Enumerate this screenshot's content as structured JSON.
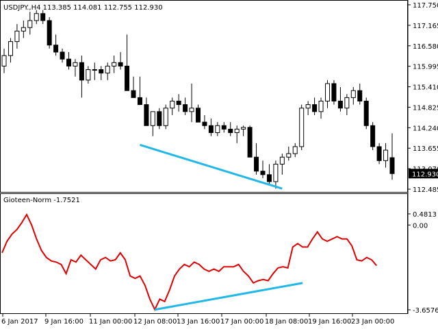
{
  "window": {
    "symbol_header": "USDJPY.,H4  113.385 114.081 112.755 112.930",
    "indicator_header": "Gioteen-Norm -1.7521"
  },
  "colors": {
    "background": "#ffffff",
    "frame": "#000000",
    "candle": "#000000",
    "trendline": "#1fb8e8",
    "indicator": "#e00000",
    "price_tag_bg": "#000000",
    "price_tag_text": "#ffffff"
  },
  "price_axis": {
    "labels": [
      "117.750",
      "117.165",
      "116.580",
      "115.995",
      "115.410",
      "114.825",
      "114.240",
      "113.655",
      "113.070",
      "112.485"
    ],
    "current_price": "112.930"
  },
  "indicator_axis": {
    "labels": [
      "0.4813",
      "0.00",
      "-3.6576"
    ]
  },
  "time_axis": {
    "labels": [
      "6 Jan 2017",
      "9 Jan 16:00",
      "11 Jan 00:00",
      "12 Jan 08:00",
      "13 Jan 16:00",
      "17 Jan 00:00",
      "18 Jan 08:00",
      "19 Jan 16:00",
      "23 Jan 00:00"
    ]
  },
  "chart_data": [
    {
      "type": "candlestick",
      "title": "USDJPY.,H4",
      "ohlc_header": {
        "open": 113.385,
        "high": 114.081,
        "low": 112.755,
        "close": 112.93
      },
      "ylim": [
        112.485,
        117.75
      ],
      "candles": [
        [
          116.0,
          116.5,
          115.8,
          116.3
        ],
        [
          116.3,
          116.8,
          116.1,
          116.7
        ],
        [
          116.7,
          117.2,
          116.5,
          117.0
        ],
        [
          117.0,
          117.3,
          116.8,
          117.1
        ],
        [
          117.1,
          117.55,
          116.9,
          117.3
        ],
        [
          117.3,
          117.6,
          117.2,
          117.5
        ],
        [
          117.5,
          117.6,
          117.2,
          117.3
        ],
        [
          117.3,
          117.4,
          116.5,
          116.6
        ],
        [
          116.6,
          116.9,
          116.3,
          116.4
        ],
        [
          116.4,
          116.5,
          116.1,
          116.2
        ],
        [
          116.2,
          116.4,
          115.9,
          116.0
        ],
        [
          116.0,
          116.2,
          115.7,
          116.1
        ],
        [
          116.1,
          116.3,
          115.1,
          115.6
        ],
        [
          115.6,
          116.0,
          115.5,
          115.9
        ],
        [
          115.9,
          116.1,
          115.6,
          115.9
        ],
        [
          115.9,
          116.0,
          115.6,
          115.8
        ],
        [
          115.8,
          116.1,
          115.6,
          116.0
        ],
        [
          116.0,
          116.3,
          115.8,
          116.1
        ],
        [
          116.1,
          116.4,
          115.9,
          116.0
        ],
        [
          116.0,
          116.9,
          115.3,
          115.3
        ],
        [
          115.3,
          115.7,
          115.1,
          115.1
        ],
        [
          115.1,
          115.7,
          114.9,
          114.9
        ],
        [
          114.9,
          115.1,
          114.3,
          114.3
        ],
        [
          114.3,
          114.7,
          114.0,
          114.7
        ],
        [
          114.7,
          114.8,
          114.2,
          114.3
        ],
        [
          114.3,
          114.9,
          114.2,
          114.8
        ],
        [
          114.8,
          115.1,
          114.6,
          115.0
        ],
        [
          115.0,
          115.2,
          114.7,
          114.9
        ],
        [
          114.9,
          115.1,
          114.6,
          114.7
        ],
        [
          114.7,
          115.5,
          114.4,
          114.8
        ],
        [
          114.8,
          114.9,
          114.4,
          114.4
        ],
        [
          114.4,
          114.6,
          114.2,
          114.3
        ],
        [
          114.3,
          114.5,
          114.0,
          114.1
        ],
        [
          114.1,
          114.4,
          114.0,
          114.3
        ],
        [
          114.3,
          114.4,
          114.1,
          114.2
        ],
        [
          114.2,
          114.4,
          114.0,
          114.1
        ],
        [
          114.1,
          114.3,
          113.8,
          114.2
        ],
        [
          114.2,
          114.3,
          114.0,
          114.25
        ],
        [
          114.25,
          114.3,
          113.4,
          113.4
        ],
        [
          113.4,
          113.8,
          112.9,
          113.0
        ],
        [
          113.0,
          113.3,
          112.8,
          112.9
        ],
        [
          112.9,
          113.2,
          112.6,
          112.7
        ],
        [
          112.7,
          113.3,
          112.5,
          113.2
        ],
        [
          113.2,
          113.5,
          112.9,
          113.4
        ],
        [
          113.4,
          113.7,
          113.3,
          113.5
        ],
        [
          113.5,
          113.8,
          113.4,
          113.7
        ],
        [
          113.7,
          114.9,
          113.6,
          114.8
        ],
        [
          114.8,
          115.0,
          114.6,
          114.9
        ],
        [
          114.9,
          115.1,
          114.6,
          114.7
        ],
        [
          114.7,
          115.1,
          114.5,
          115.0
        ],
        [
          115.0,
          115.6,
          114.8,
          115.5
        ],
        [
          115.5,
          115.6,
          114.9,
          115.0
        ],
        [
          115.0,
          115.4,
          114.7,
          114.8
        ],
        [
          114.8,
          115.2,
          114.6,
          115.1
        ],
        [
          115.1,
          115.4,
          114.9,
          115.3
        ],
        [
          115.3,
          115.5,
          114.9,
          115.0
        ],
        [
          115.0,
          115.1,
          114.2,
          114.3
        ],
        [
          114.3,
          114.4,
          113.6,
          113.7
        ],
        [
          113.7,
          113.8,
          113.2,
          113.3
        ],
        [
          113.3,
          113.8,
          113.1,
          113.6
        ],
        [
          113.385,
          114.081,
          112.755,
          112.93
        ]
      ],
      "trendline": {
        "from": {
          "candle": 21,
          "price": 113.75
        },
        "to": {
          "candle": 43,
          "price": 112.5
        }
      }
    },
    {
      "type": "line",
      "title": "Gioteen-Norm",
      "current_value": -1.7521,
      "ylim": [
        -3.6576,
        0.4813
      ],
      "series": [
        {
          "values": [
            -1.2,
            -0.7,
            -0.4,
            -0.2,
            0.1,
            0.45,
            0.0,
            -0.6,
            -1.1,
            -1.4,
            -1.55,
            -1.6,
            -1.7,
            -2.1,
            -1.5,
            -1.6,
            -1.3,
            -1.5,
            -1.7,
            -1.9,
            -1.5,
            -1.4,
            -1.55,
            -1.5,
            -1.2,
            -1.5,
            -2.2,
            -2.3,
            -2.2,
            -2.6,
            -3.2,
            -3.65,
            -3.2,
            -3.3,
            -2.8,
            -2.2,
            -1.9,
            -1.7,
            -1.8,
            -1.6,
            -1.7,
            -1.9,
            -2.0,
            -1.9,
            -2.0,
            -1.8,
            -1.8,
            -1.8,
            -1.7,
            -2.0,
            -2.2,
            -2.5,
            -2.4,
            -2.35,
            -2.4,
            -2.1,
            -1.85,
            -1.8,
            -1.85,
            -0.95,
            -0.8,
            -0.95,
            -0.95,
            -0.6,
            -0.3,
            -0.6,
            -0.7,
            -0.6,
            -0.5,
            -0.6,
            -0.6,
            -0.9,
            -1.5,
            -1.55,
            -1.4,
            -1.5,
            -1.75
          ],
          "trendline": {
            "from": {
              "index": 31,
              "value": -3.65
            },
            "to": {
              "index": 61,
              "value": -2.5
            }
          }
        }
      ]
    }
  ]
}
